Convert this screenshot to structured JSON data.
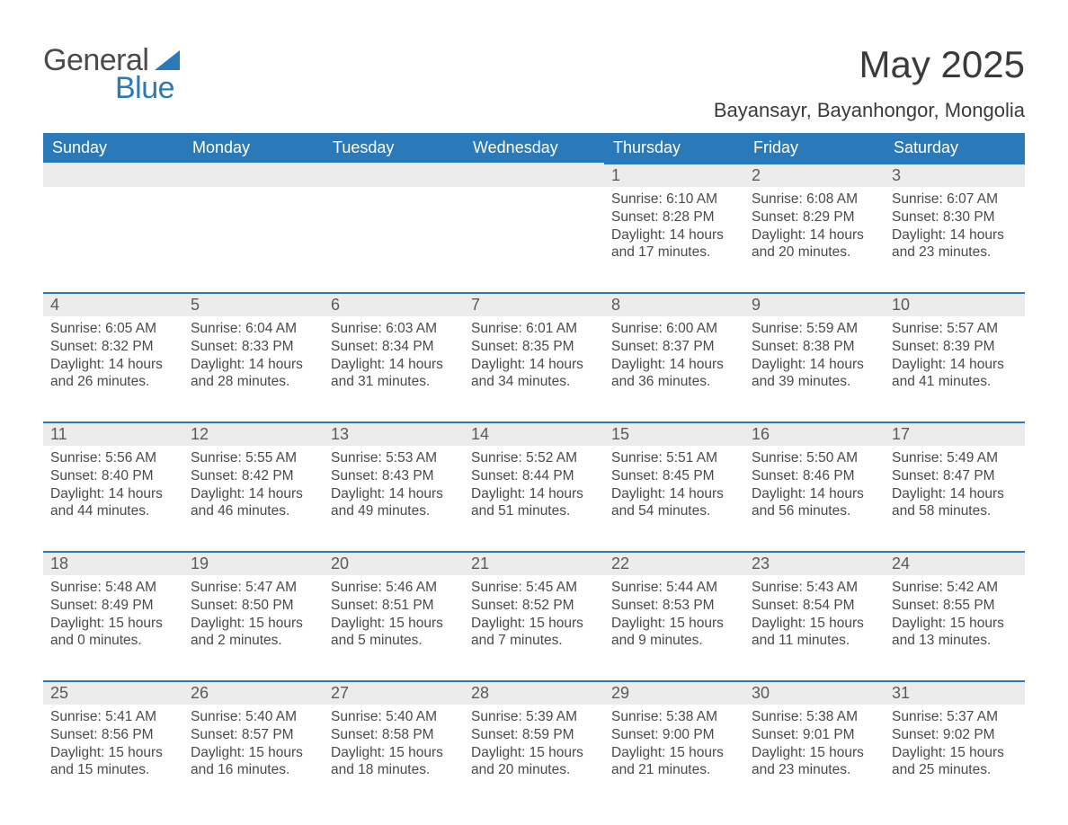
{
  "logo": {
    "word1": "General",
    "word2": "Blue",
    "icon_color": "#2a7ab9"
  },
  "title": "May 2025",
  "location": "Bayansayr, Bayanhongor, Mongolia",
  "colors": {
    "header_bg": "#2a7ab9",
    "header_text": "#ffffff",
    "daynum_bg": "#ececec",
    "cell_border_top": "#2a7ab9",
    "body_text": "#4a4a4a"
  },
  "day_headers": [
    "Sunday",
    "Monday",
    "Tuesday",
    "Wednesday",
    "Thursday",
    "Friday",
    "Saturday"
  ],
  "weeks": [
    [
      null,
      null,
      null,
      null,
      {
        "n": "1",
        "sunrise": "6:10 AM",
        "sunset": "8:28 PM",
        "dl1": "Daylight: 14 hours",
        "dl2": "and 17 minutes."
      },
      {
        "n": "2",
        "sunrise": "6:08 AM",
        "sunset": "8:29 PM",
        "dl1": "Daylight: 14 hours",
        "dl2": "and 20 minutes."
      },
      {
        "n": "3",
        "sunrise": "6:07 AM",
        "sunset": "8:30 PM",
        "dl1": "Daylight: 14 hours",
        "dl2": "and 23 minutes."
      }
    ],
    [
      {
        "n": "4",
        "sunrise": "6:05 AM",
        "sunset": "8:32 PM",
        "dl1": "Daylight: 14 hours",
        "dl2": "and 26 minutes."
      },
      {
        "n": "5",
        "sunrise": "6:04 AM",
        "sunset": "8:33 PM",
        "dl1": "Daylight: 14 hours",
        "dl2": "and 28 minutes."
      },
      {
        "n": "6",
        "sunrise": "6:03 AM",
        "sunset": "8:34 PM",
        "dl1": "Daylight: 14 hours",
        "dl2": "and 31 minutes."
      },
      {
        "n": "7",
        "sunrise": "6:01 AM",
        "sunset": "8:35 PM",
        "dl1": "Daylight: 14 hours",
        "dl2": "and 34 minutes."
      },
      {
        "n": "8",
        "sunrise": "6:00 AM",
        "sunset": "8:37 PM",
        "dl1": "Daylight: 14 hours",
        "dl2": "and 36 minutes."
      },
      {
        "n": "9",
        "sunrise": "5:59 AM",
        "sunset": "8:38 PM",
        "dl1": "Daylight: 14 hours",
        "dl2": "and 39 minutes."
      },
      {
        "n": "10",
        "sunrise": "5:57 AM",
        "sunset": "8:39 PM",
        "dl1": "Daylight: 14 hours",
        "dl2": "and 41 minutes."
      }
    ],
    [
      {
        "n": "11",
        "sunrise": "5:56 AM",
        "sunset": "8:40 PM",
        "dl1": "Daylight: 14 hours",
        "dl2": "and 44 minutes."
      },
      {
        "n": "12",
        "sunrise": "5:55 AM",
        "sunset": "8:42 PM",
        "dl1": "Daylight: 14 hours",
        "dl2": "and 46 minutes."
      },
      {
        "n": "13",
        "sunrise": "5:53 AM",
        "sunset": "8:43 PM",
        "dl1": "Daylight: 14 hours",
        "dl2": "and 49 minutes."
      },
      {
        "n": "14",
        "sunrise": "5:52 AM",
        "sunset": "8:44 PM",
        "dl1": "Daylight: 14 hours",
        "dl2": "and 51 minutes."
      },
      {
        "n": "15",
        "sunrise": "5:51 AM",
        "sunset": "8:45 PM",
        "dl1": "Daylight: 14 hours",
        "dl2": "and 54 minutes."
      },
      {
        "n": "16",
        "sunrise": "5:50 AM",
        "sunset": "8:46 PM",
        "dl1": "Daylight: 14 hours",
        "dl2": "and 56 minutes."
      },
      {
        "n": "17",
        "sunrise": "5:49 AM",
        "sunset": "8:47 PM",
        "dl1": "Daylight: 14 hours",
        "dl2": "and 58 minutes."
      }
    ],
    [
      {
        "n": "18",
        "sunrise": "5:48 AM",
        "sunset": "8:49 PM",
        "dl1": "Daylight: 15 hours",
        "dl2": "and 0 minutes."
      },
      {
        "n": "19",
        "sunrise": "5:47 AM",
        "sunset": "8:50 PM",
        "dl1": "Daylight: 15 hours",
        "dl2": "and 2 minutes."
      },
      {
        "n": "20",
        "sunrise": "5:46 AM",
        "sunset": "8:51 PM",
        "dl1": "Daylight: 15 hours",
        "dl2": "and 5 minutes."
      },
      {
        "n": "21",
        "sunrise": "5:45 AM",
        "sunset": "8:52 PM",
        "dl1": "Daylight: 15 hours",
        "dl2": "and 7 minutes."
      },
      {
        "n": "22",
        "sunrise": "5:44 AM",
        "sunset": "8:53 PM",
        "dl1": "Daylight: 15 hours",
        "dl2": "and 9 minutes."
      },
      {
        "n": "23",
        "sunrise": "5:43 AM",
        "sunset": "8:54 PM",
        "dl1": "Daylight: 15 hours",
        "dl2": "and 11 minutes."
      },
      {
        "n": "24",
        "sunrise": "5:42 AM",
        "sunset": "8:55 PM",
        "dl1": "Daylight: 15 hours",
        "dl2": "and 13 minutes."
      }
    ],
    [
      {
        "n": "25",
        "sunrise": "5:41 AM",
        "sunset": "8:56 PM",
        "dl1": "Daylight: 15 hours",
        "dl2": "and 15 minutes."
      },
      {
        "n": "26",
        "sunrise": "5:40 AM",
        "sunset": "8:57 PM",
        "dl1": "Daylight: 15 hours",
        "dl2": "and 16 minutes."
      },
      {
        "n": "27",
        "sunrise": "5:40 AM",
        "sunset": "8:58 PM",
        "dl1": "Daylight: 15 hours",
        "dl2": "and 18 minutes."
      },
      {
        "n": "28",
        "sunrise": "5:39 AM",
        "sunset": "8:59 PM",
        "dl1": "Daylight: 15 hours",
        "dl2": "and 20 minutes."
      },
      {
        "n": "29",
        "sunrise": "5:38 AM",
        "sunset": "9:00 PM",
        "dl1": "Daylight: 15 hours",
        "dl2": "and 21 minutes."
      },
      {
        "n": "30",
        "sunrise": "5:38 AM",
        "sunset": "9:01 PM",
        "dl1": "Daylight: 15 hours",
        "dl2": "and 23 minutes."
      },
      {
        "n": "31",
        "sunrise": "5:37 AM",
        "sunset": "9:02 PM",
        "dl1": "Daylight: 15 hours",
        "dl2": "and 25 minutes."
      }
    ]
  ],
  "labels": {
    "sunrise_prefix": "Sunrise: ",
    "sunset_prefix": "Sunset: "
  }
}
